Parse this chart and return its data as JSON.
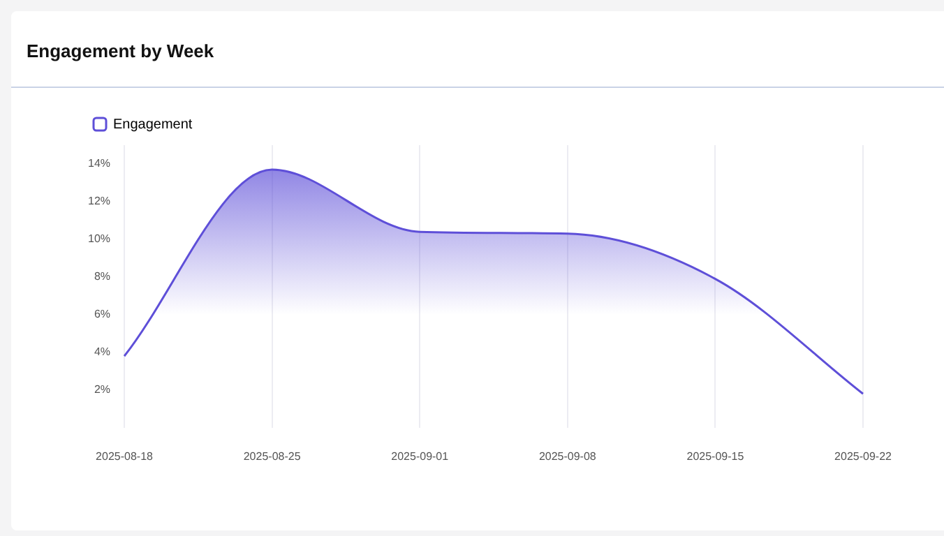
{
  "chart_data": {
    "type": "area",
    "title": "Engagement by Week",
    "categories": [
      "2025-08-18",
      "2025-08-25",
      "2025-09-01",
      "2025-09-08",
      "2025-09-15",
      "2025-09-22"
    ],
    "series": [
      {
        "name": "Engagement",
        "color": "#5e4fd8",
        "values": [
          3.8,
          13.7,
          10.4,
          10.3,
          7.9,
          1.8
        ]
      }
    ],
    "ylim": [
      0,
      15
    ],
    "yticks": [
      {
        "value": 2,
        "label": "2%"
      },
      {
        "value": 4,
        "label": "4%"
      },
      {
        "value": 6,
        "label": "6%"
      },
      {
        "value": 8,
        "label": "8%"
      },
      {
        "value": 10,
        "label": "10%"
      },
      {
        "value": 12,
        "label": "12%"
      },
      {
        "value": 14,
        "label": "14%"
      }
    ],
    "grid": "x",
    "legend": "top left",
    "marker": "none"
  }
}
